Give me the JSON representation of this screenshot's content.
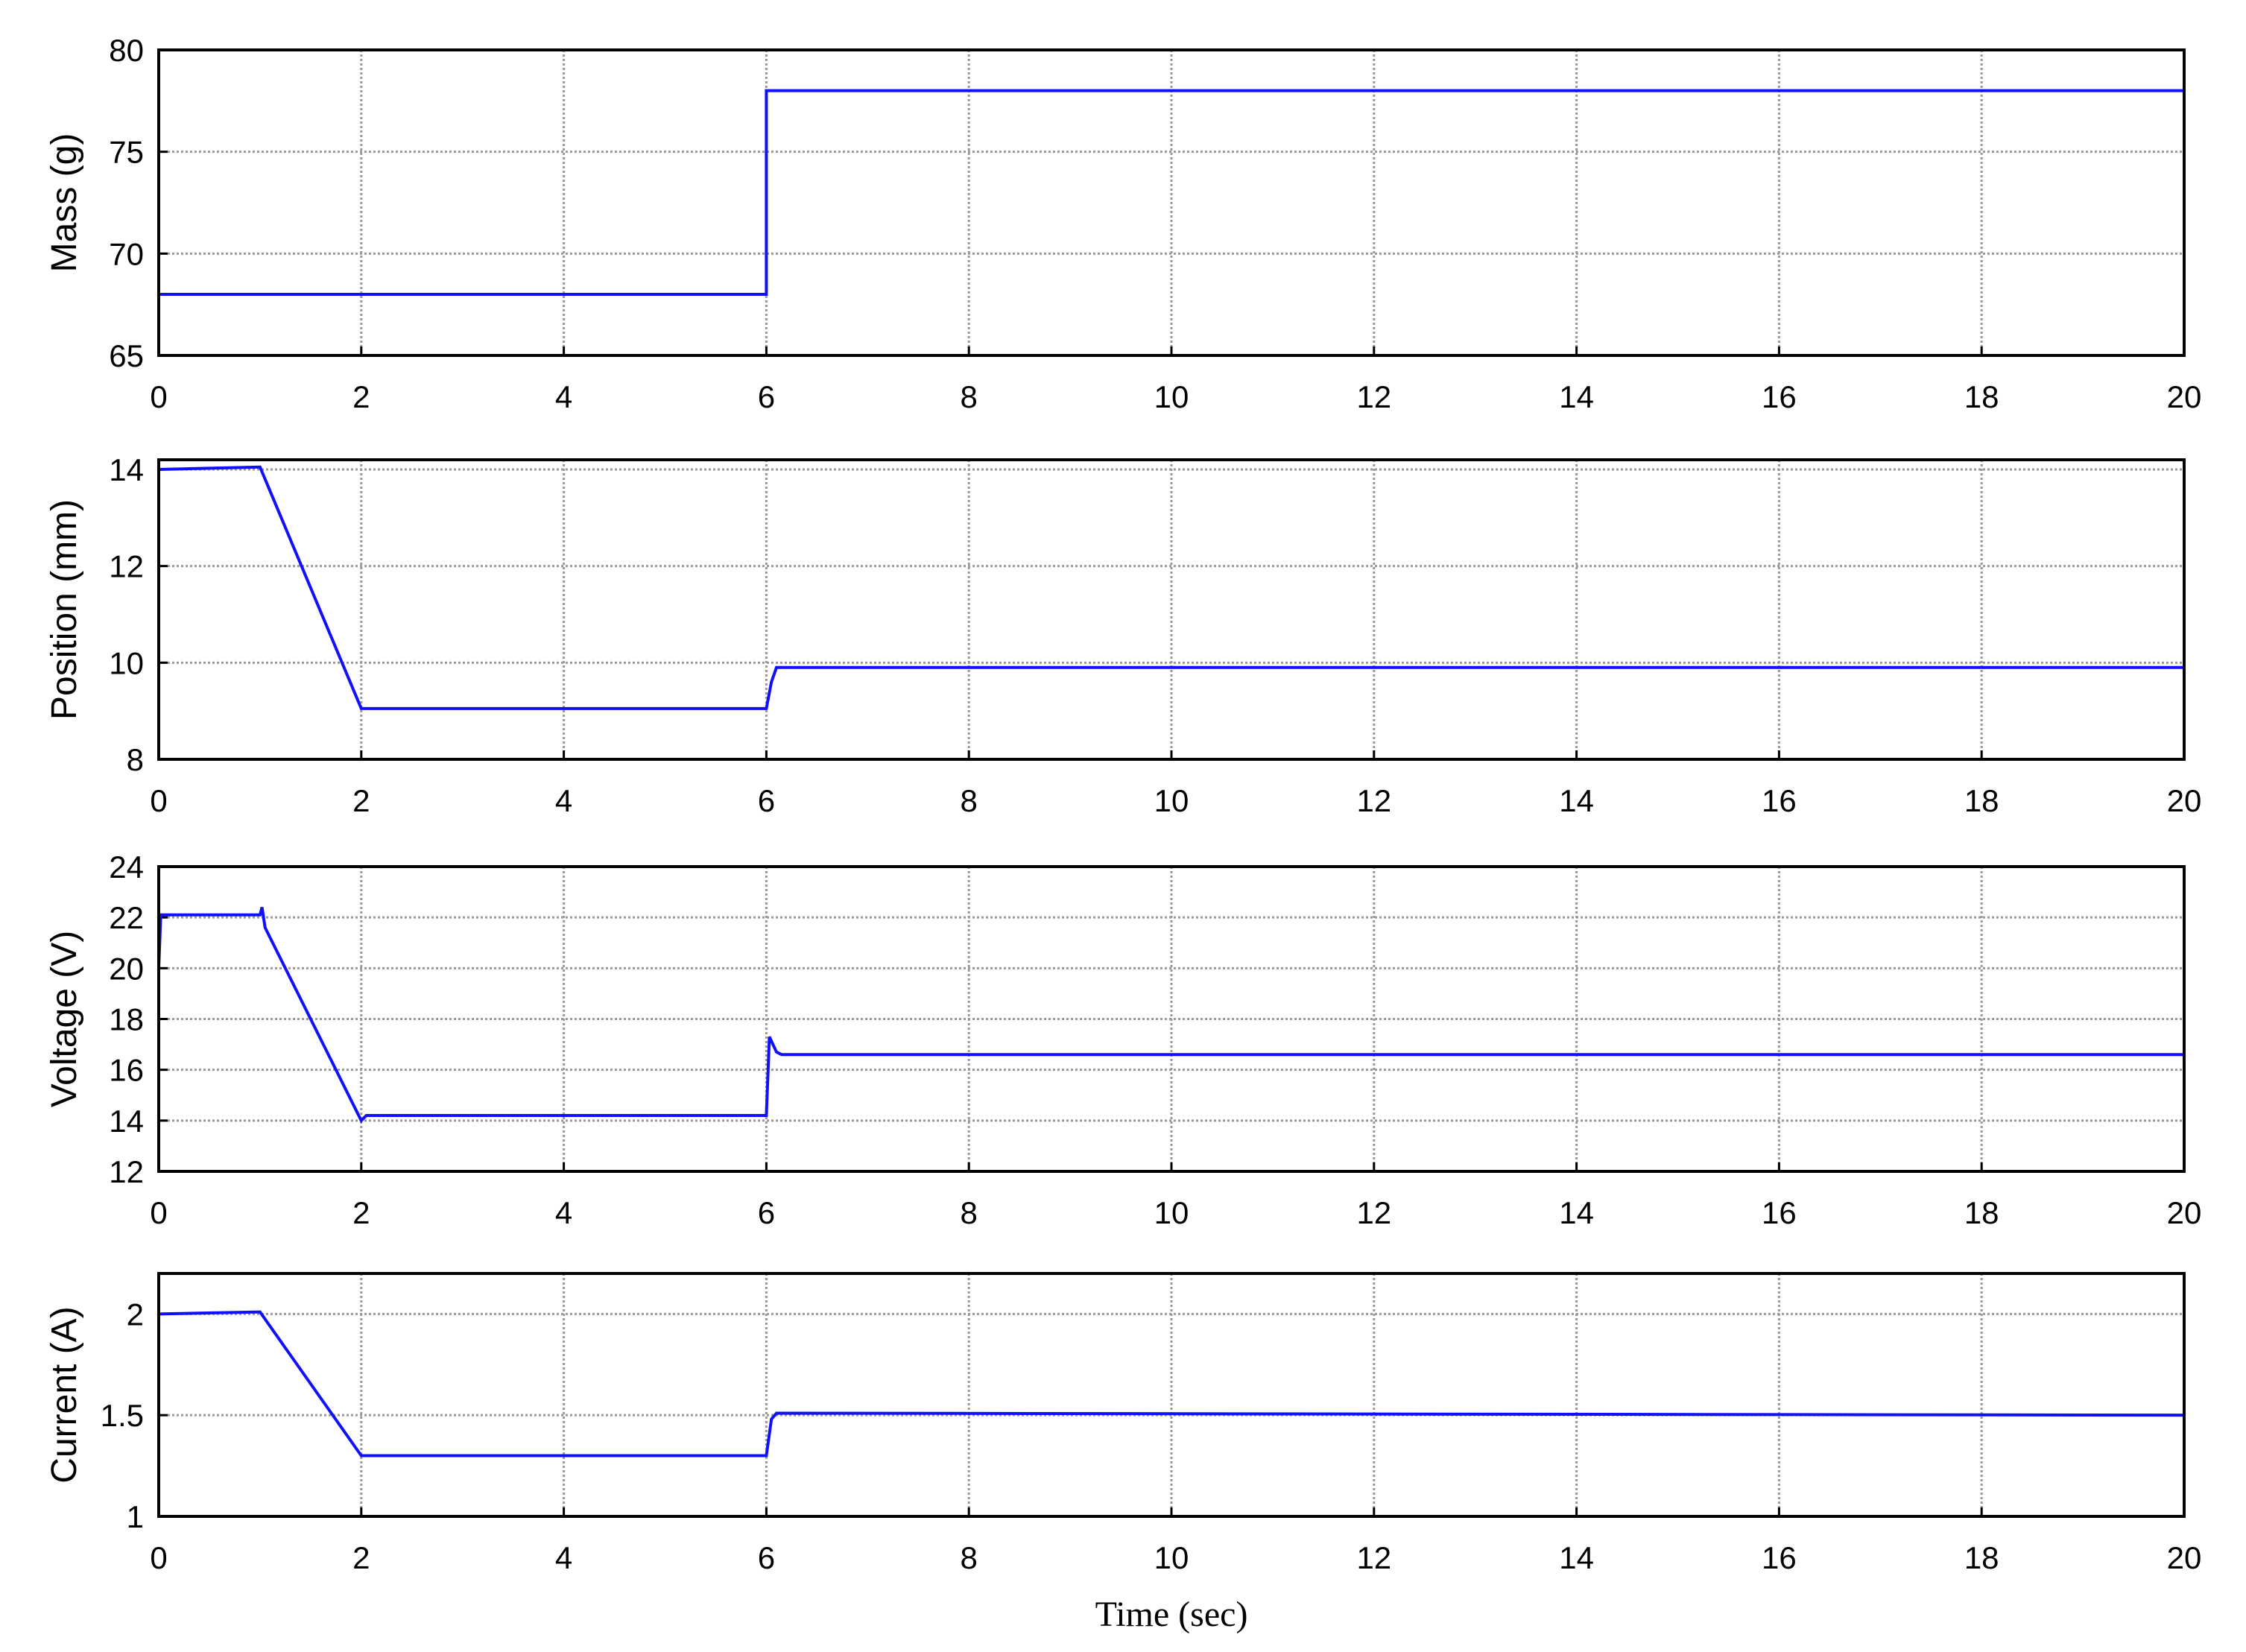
{
  "chart_data": [
    {
      "type": "line",
      "ylabel": "Mass (g)",
      "color": "#1010ff",
      "grid": true,
      "x": [
        0,
        6,
        6,
        20
      ],
      "values": [
        68,
        68,
        78,
        78
      ],
      "xlim": [
        0,
        20
      ],
      "xticks": [
        0,
        2,
        4,
        6,
        8,
        10,
        12,
        14,
        16,
        18,
        20
      ],
      "ylim": [
        65,
        80
      ],
      "yticks": [
        65,
        70,
        75,
        80
      ]
    },
    {
      "type": "line",
      "ylabel": "Position (mm)",
      "color": "#1010ff",
      "grid": true,
      "x": [
        0,
        1,
        2,
        6,
        6.05,
        6.1,
        20
      ],
      "values": [
        14,
        14.05,
        9.05,
        9.05,
        9.6,
        9.9,
        9.9
      ],
      "xlim": [
        0,
        20
      ],
      "xticks": [
        0,
        2,
        4,
        6,
        8,
        10,
        12,
        14,
        16,
        18,
        20
      ],
      "ylim": [
        8,
        14.2
      ],
      "yticks": [
        8,
        10,
        12,
        14
      ]
    },
    {
      "type": "line",
      "ylabel": "Voltage (V)",
      "color": "#1010ff",
      "grid": true,
      "x": [
        0,
        0.02,
        1,
        1.02,
        1.05,
        2,
        2.05,
        6,
        6.03,
        6.1,
        6.15,
        20
      ],
      "values": [
        20,
        22.1,
        22.1,
        22.4,
        21.6,
        14,
        14.2,
        14.2,
        17.3,
        16.7,
        16.6,
        16.6
      ],
      "xlim": [
        0,
        20
      ],
      "xticks": [
        0,
        2,
        4,
        6,
        8,
        10,
        12,
        14,
        16,
        18,
        20
      ],
      "ylim": [
        12,
        24
      ],
      "yticks": [
        12,
        14,
        16,
        18,
        20,
        22,
        24
      ]
    },
    {
      "type": "line",
      "ylabel": "Current (A)",
      "xlabel": "Time (sec)",
      "color": "#1010ff",
      "grid": true,
      "x": [
        0,
        1,
        2,
        6,
        6.05,
        6.1,
        20
      ],
      "values": [
        2,
        2.01,
        1.3,
        1.3,
        1.48,
        1.51,
        1.5
      ],
      "xlim": [
        0,
        20
      ],
      "xticks": [
        0,
        2,
        4,
        6,
        8,
        10,
        12,
        14,
        16,
        18,
        20
      ],
      "ylim": [
        1,
        2.2
      ],
      "yticks": [
        1,
        1.5,
        2
      ]
    }
  ]
}
